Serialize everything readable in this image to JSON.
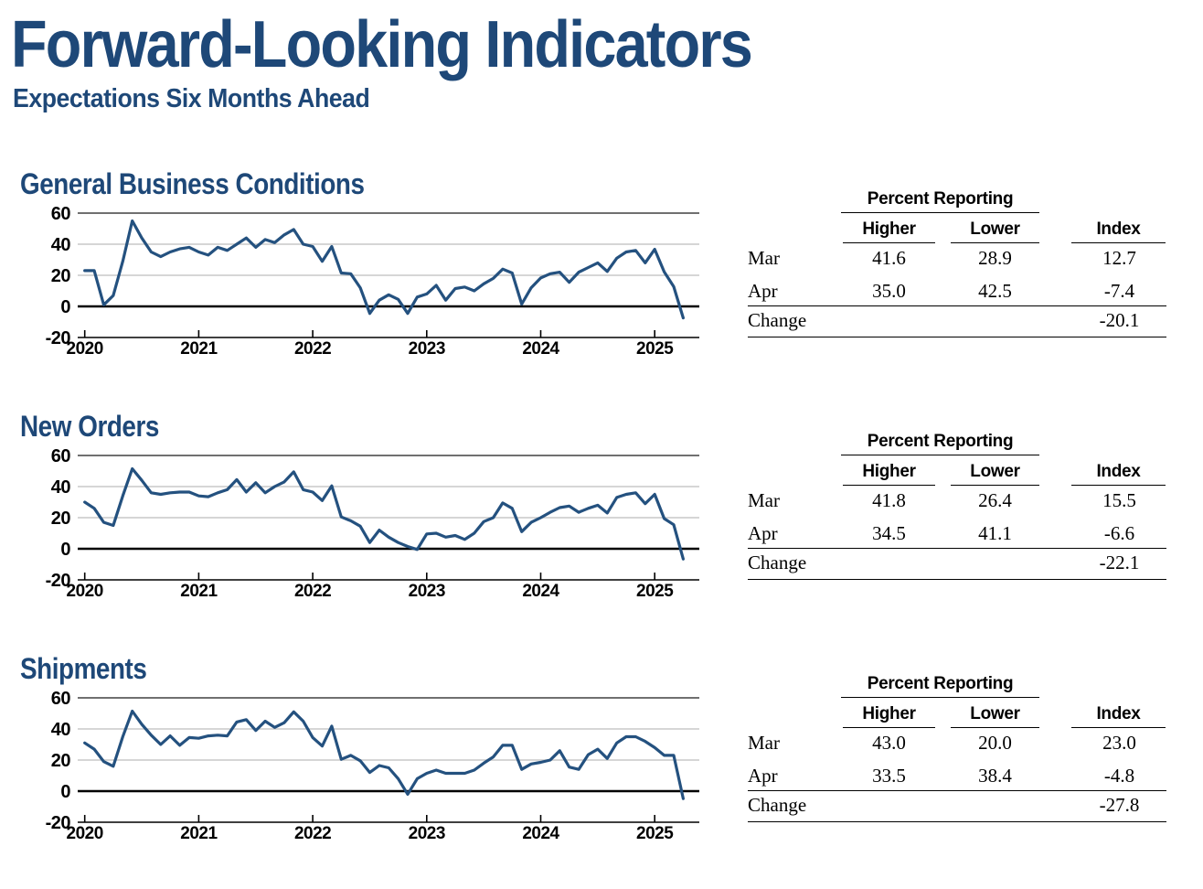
{
  "page": {
    "title": "Forward-Looking Indicators",
    "subtitle": "Expectations Six Months Ahead"
  },
  "colors": {
    "heading_navy": "#1e4878",
    "line_navy": "#24517f",
    "grid_light": "#c8c8c8",
    "grid_dark": "#404040",
    "zero_line": "#000000"
  },
  "sections": [
    {
      "title": "General Business Conditions",
      "table": {
        "group_header": "Percent Reporting",
        "columns": [
          "Higher",
          "Lower",
          "Index"
        ],
        "rows": [
          {
            "label": "Mar",
            "higher": "41.6",
            "lower": "28.9",
            "index": "12.7"
          },
          {
            "label": "Apr",
            "higher": "35.0",
            "lower": "42.5",
            "index": "-7.4"
          }
        ],
        "change_label": "Change",
        "change_index": "-20.1"
      }
    },
    {
      "title": "New Orders",
      "table": {
        "group_header": "Percent Reporting",
        "columns": [
          "Higher",
          "Lower",
          "Index"
        ],
        "rows": [
          {
            "label": "Mar",
            "higher": "41.8",
            "lower": "26.4",
            "index": "15.5"
          },
          {
            "label": "Apr",
            "higher": "34.5",
            "lower": "41.1",
            "index": "-6.6"
          }
        ],
        "change_label": "Change",
        "change_index": "-22.1"
      }
    },
    {
      "title": "Shipments",
      "table": {
        "group_header": "Percent Reporting",
        "columns": [
          "Higher",
          "Lower",
          "Index"
        ],
        "rows": [
          {
            "label": "Mar",
            "higher": "43.0",
            "lower": "20.0",
            "index": "23.0"
          },
          {
            "label": "Apr",
            "higher": "33.5",
            "lower": "38.4",
            "index": "-4.8"
          }
        ],
        "change_label": "Change",
        "change_index": "-27.8"
      }
    }
  ],
  "chart_data": [
    {
      "type": "line",
      "title": "General Business Conditions",
      "x_start": "2020-01",
      "x_end": "2025-04",
      "frequency": "monthly",
      "x_tick_labels": [
        "2020",
        "2021",
        "2022",
        "2023",
        "2024",
        "2025"
      ],
      "yticks": [
        -20,
        0,
        20,
        40,
        60
      ],
      "ylim": [
        -20,
        60
      ],
      "grid": true,
      "legend": "none",
      "series": [
        {
          "name": "Future General Business Conditions Index",
          "values": [
            23,
            23,
            1,
            7,
            29,
            55,
            44,
            35,
            32,
            35,
            37,
            38,
            35,
            33,
            38,
            36,
            40,
            44,
            38,
            43,
            41,
            46,
            49.5,
            40,
            38.5,
            29,
            38.5,
            21.5,
            21,
            12,
            -4.5,
            4,
            7.5,
            4.5,
            -4.5,
            6,
            8,
            13.5,
            4,
            11.5,
            12.5,
            10,
            14.5,
            18,
            24,
            21.5,
            1.5,
            12,
            18.3,
            21,
            22,
            15.5,
            22,
            25,
            28,
            22.5,
            31,
            35,
            36,
            28,
            36.7,
            22.2,
            12.7,
            -7.4
          ]
        }
      ]
    },
    {
      "type": "line",
      "title": "New Orders",
      "x_start": "2020-01",
      "x_end": "2025-04",
      "frequency": "monthly",
      "x_tick_labels": [
        "2020",
        "2021",
        "2022",
        "2023",
        "2024",
        "2025"
      ],
      "yticks": [
        -20,
        0,
        20,
        40,
        60
      ],
      "ylim": [
        -20,
        60
      ],
      "grid": true,
      "legend": "none",
      "series": [
        {
          "name": "Future New Orders Index",
          "values": [
            30,
            26,
            17,
            15,
            34,
            51.5,
            44,
            36,
            35,
            36,
            36.5,
            36.5,
            34,
            33.5,
            36,
            38,
            44.5,
            36.5,
            42.5,
            36,
            40,
            43,
            49.5,
            38,
            36.5,
            31,
            40.5,
            20.5,
            18,
            14.5,
            4,
            12,
            7.5,
            4,
            1.5,
            -0.5,
            9.5,
            10,
            7.5,
            8.5,
            6,
            10,
            17.5,
            20,
            29.5,
            26,
            11,
            17,
            20,
            23.5,
            26.5,
            27.5,
            23.5,
            26,
            28,
            23,
            33,
            35,
            36,
            29,
            35,
            19.4,
            15.5,
            -6.6
          ]
        }
      ]
    },
    {
      "type": "line",
      "title": "Shipments",
      "x_start": "2020-01",
      "x_end": "2025-04",
      "frequency": "monthly",
      "x_tick_labels": [
        "2020",
        "2021",
        "2022",
        "2023",
        "2024",
        "2025"
      ],
      "yticks": [
        -20,
        0,
        20,
        40,
        60
      ],
      "ylim": [
        -20,
        60
      ],
      "grid": true,
      "legend": "none",
      "series": [
        {
          "name": "Future Shipments Index",
          "values": [
            31,
            27,
            19,
            16,
            35,
            51.5,
            43,
            36,
            30,
            35.5,
            29.5,
            34.5,
            34,
            35.5,
            36,
            35.5,
            44.5,
            46,
            39,
            45,
            41,
            44,
            51,
            45,
            34.5,
            29,
            41.8,
            20.5,
            23,
            19.5,
            12,
            16.5,
            15,
            8,
            -2,
            8,
            11.5,
            13.5,
            11.5,
            11.5,
            11.5,
            13.5,
            18,
            22,
            29.5,
            29.5,
            14,
            17.5,
            18.5,
            20,
            26,
            15.5,
            14,
            23.5,
            27,
            21,
            31,
            35,
            35,
            32,
            28,
            23,
            23,
            -4.8
          ]
        }
      ]
    }
  ]
}
